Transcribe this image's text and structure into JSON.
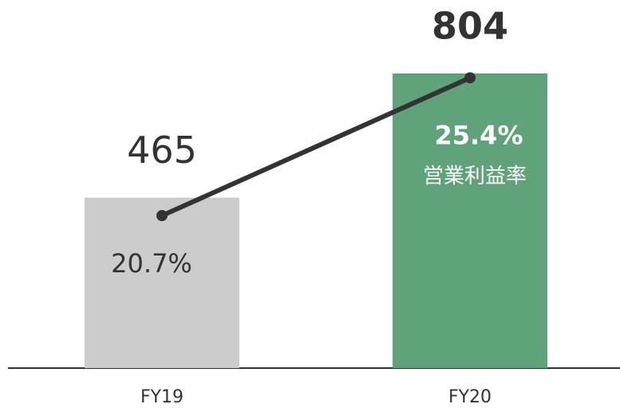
{
  "chart_data": {
    "type": "bar-line",
    "categories": [
      "FY19",
      "FY20"
    ],
    "ylim": [
      0,
      1000
    ],
    "y2lim": [
      15.5,
      28
    ],
    "series": [
      {
        "type": "bar",
        "values": [
          465,
          804
        ],
        "colors": [
          "#cccccc",
          "#5ea37a"
        ]
      },
      {
        "type": "line",
        "name": "営業利益率",
        "axis": "y2",
        "color": "#333333",
        "values": [
          20.7,
          25.4
        ],
        "value_labels": [
          "20.7%",
          "25.4%"
        ]
      }
    ]
  }
}
